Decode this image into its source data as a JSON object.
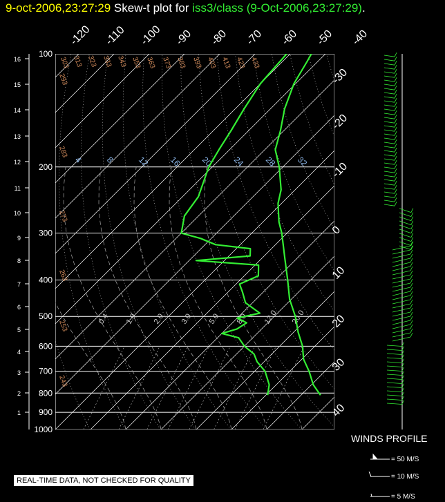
{
  "header": {
    "time": "9-oct-2006,23:27:29",
    "mid": " Skew-t plot for ",
    "station": "iss3/class (9-Oct-2006,23:27:29)",
    "dot": "."
  },
  "colors": {
    "profile": "#33ee33",
    "grid": "#ffffff",
    "theta": "#d08a5a",
    "mixing": "#8ab4e6",
    "header_time": "#ffff00"
  },
  "winds": {
    "title": "WINDS PROFILE",
    "legend": [
      "= 50 M/S",
      "= 10 M/S",
      "= 5 M/S"
    ]
  },
  "note": "REAL-TIME DATA, NOT CHECKED FOR QUALITY",
  "chart_data": {
    "type": "skew-t",
    "pressure_levels": [
      100,
      200,
      300,
      400,
      500,
      600,
      700,
      800,
      900,
      1000
    ],
    "height_km_ticks": [
      1,
      2,
      3,
      4,
      5,
      6,
      7,
      8,
      9,
      10,
      11,
      12,
      13,
      14,
      15,
      16
    ],
    "temp_ticks_top": [
      -120,
      -110,
      -100,
      -90,
      -80,
      -70,
      -60,
      -50,
      -40
    ],
    "temp_ticks_right": [
      -30,
      -20,
      -10,
      0,
      10,
      20,
      30,
      40
    ],
    "theta_labels": [
      303,
      313,
      323,
      333,
      343,
      353,
      363,
      373,
      383,
      393,
      403,
      413,
      423,
      433,
      293,
      283,
      273,
      263,
      253,
      243
    ],
    "mixing_labels_upper": [
      "4",
      "8",
      "12",
      "16",
      "20",
      "24",
      "28",
      "32"
    ],
    "mixing_labels_lower": [
      "0.4",
      "1.0",
      "2.0",
      "3.0",
      "5.0",
      "8.0",
      "12.0",
      "20.0"
    ],
    "temperature_profile": [
      {
        "p": 810,
        "t": 25.5
      },
      {
        "p": 760,
        "t": 20.5
      },
      {
        "p": 700,
        "t": 15.5
      },
      {
        "p": 650,
        "t": 10.5
      },
      {
        "p": 600,
        "t": 6.5
      },
      {
        "p": 550,
        "t": 1.2
      },
      {
        "p": 500,
        "t": -4.0
      },
      {
        "p": 450,
        "t": -10.5
      },
      {
        "p": 400,
        "t": -16.5
      },
      {
        "p": 350,
        "t": -23.5
      },
      {
        "p": 300,
        "t": -31.5
      },
      {
        "p": 280,
        "t": -35.5
      },
      {
        "p": 250,
        "t": -41.0
      },
      {
        "p": 230,
        "t": -44.0
      },
      {
        "p": 200,
        "t": -51.0
      },
      {
        "p": 180,
        "t": -57.0
      },
      {
        "p": 160,
        "t": -61.0
      },
      {
        "p": 140,
        "t": -66.0
      },
      {
        "p": 120,
        "t": -70.5
      },
      {
        "p": 105,
        "t": -73.0
      },
      {
        "p": 100,
        "t": -74.0
      }
    ],
    "dewpoint_profile": [
      {
        "p": 810,
        "t": 10.5
      },
      {
        "p": 760,
        "t": 8.0
      },
      {
        "p": 700,
        "t": 3.0
      },
      {
        "p": 660,
        "t": -2.0
      },
      {
        "p": 630,
        "t": -5.0
      },
      {
        "p": 600,
        "t": -10.0
      },
      {
        "p": 570,
        "t": -14.0
      },
      {
        "p": 555,
        "t": -20.0
      },
      {
        "p": 540,
        "t": -17.0
      },
      {
        "p": 520,
        "t": -16.0
      },
      {
        "p": 505,
        "t": -20.0
      },
      {
        "p": 490,
        "t": -15.0
      },
      {
        "p": 460,
        "t": -22.0
      },
      {
        "p": 430,
        "t": -26.0
      },
      {
        "p": 410,
        "t": -29.0
      },
      {
        "p": 390,
        "t": -26.0
      },
      {
        "p": 365,
        "t": -29.0
      },
      {
        "p": 355,
        "t": -48.0
      },
      {
        "p": 345,
        "t": -34.0
      },
      {
        "p": 330,
        "t": -36.0
      },
      {
        "p": 322,
        "t": -47.0
      },
      {
        "p": 310,
        "t": -53.0
      },
      {
        "p": 300,
        "t": -60.0
      },
      {
        "p": 270,
        "t": -64.0
      },
      {
        "p": 240,
        "t": -65.5
      },
      {
        "p": 200,
        "t": -71.0
      },
      {
        "p": 180,
        "t": -73.0
      },
      {
        "p": 160,
        "t": -75.0
      },
      {
        "p": 140,
        "t": -77.5
      },
      {
        "p": 120,
        "t": -80.0
      },
      {
        "p": 100,
        "t": -81.0
      }
    ],
    "grid": true
  }
}
